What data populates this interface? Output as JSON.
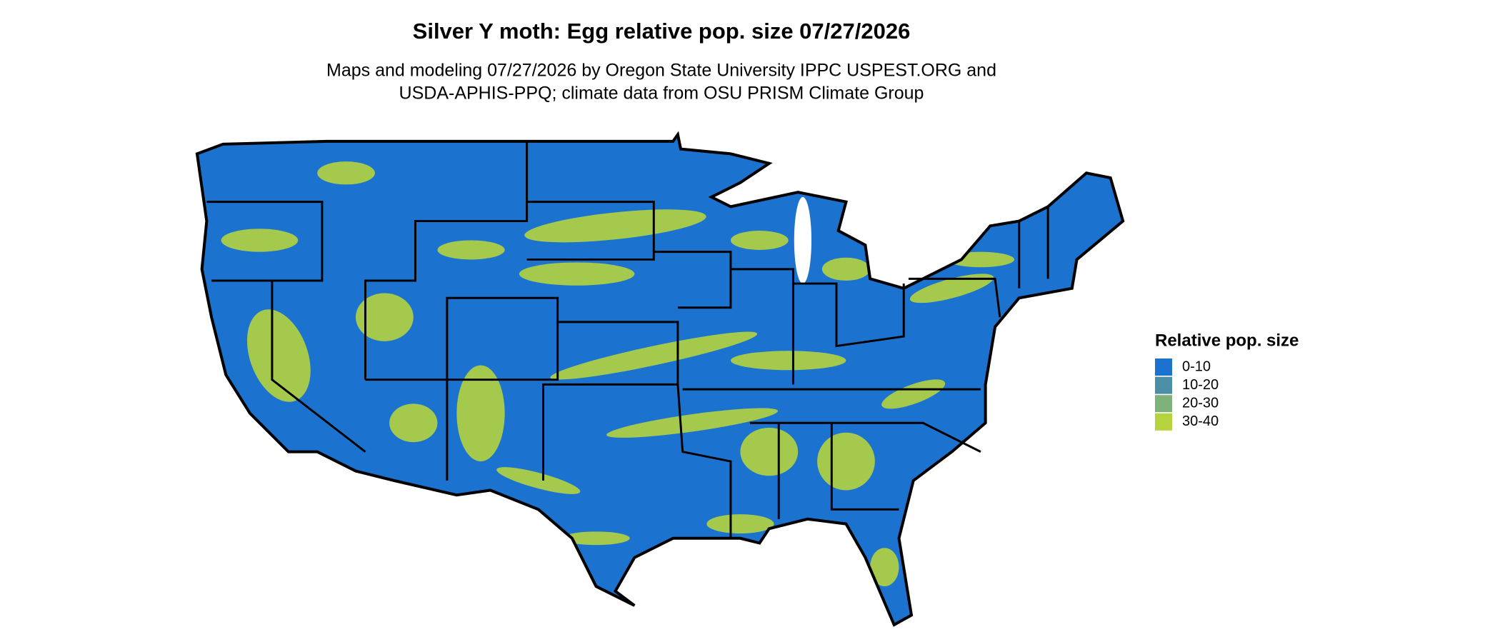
{
  "title": "Silver Y moth: Egg relative pop. size 07/27/2026",
  "subtitle": [
    "Maps and modeling 07/27/2026 by Oregon State University IPPC USPEST.ORG and",
    "USDA-APHIS-PPQ; climate data from OSU PRISM Climate Group"
  ],
  "legend": {
    "title": "Relative pop. size",
    "items": [
      {
        "label": "0-10",
        "color": "#1c73cf"
      },
      {
        "label": "10-20",
        "color": "#4a8fa6"
      },
      {
        "label": "20-30",
        "color": "#7fb27a"
      },
      {
        "label": "30-40",
        "color": "#b5d33d"
      }
    ]
  }
}
